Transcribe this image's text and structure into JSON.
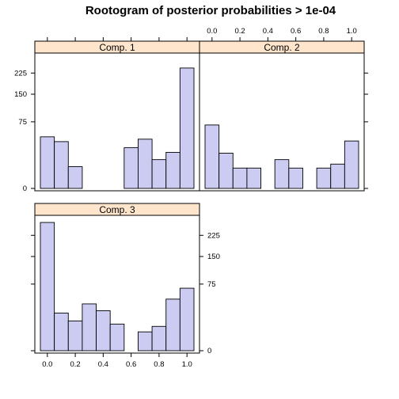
{
  "chart_data": {
    "type": "bar",
    "title": "Rootogram of posterior probabilities > 1e-04",
    "bar_color": "#ccccf3",
    "strip_color": "#ffe5cc",
    "x_ticks": [
      "0.0",
      "0.2",
      "0.4",
      "0.6",
      "0.8",
      "1.0"
    ],
    "x_tick_values": [
      0.0,
      0.2,
      0.4,
      0.6,
      0.8,
      1.0
    ],
    "y_ticks": [
      "0",
      "75",
      "150",
      "225"
    ],
    "y_tick_values": [
      0,
      75,
      150,
      225
    ],
    "y_scale": "sqrt",
    "y_max": 299,
    "x_range": [
      -0.05,
      1.05
    ],
    "bin_edges": [
      -0.05,
      0.05,
      0.15,
      0.25,
      0.35,
      0.45,
      0.55,
      0.65,
      0.75,
      0.85,
      0.95,
      1.05
    ],
    "panels": [
      {
        "name": "Comp. 1",
        "counts": [
          45,
          37,
          8,
          0,
          0,
          0,
          28,
          41,
          14,
          22,
          245
        ]
      },
      {
        "name": "Comp. 2",
        "counts": [
          68,
          21,
          7,
          7,
          0,
          14,
          7,
          0,
          7,
          10,
          38
        ]
      },
      {
        "name": "Comp. 3",
        "counts": [
          278,
          24,
          15,
          37,
          27,
          12,
          0,
          6,
          10,
          45,
          66
        ]
      }
    ]
  }
}
